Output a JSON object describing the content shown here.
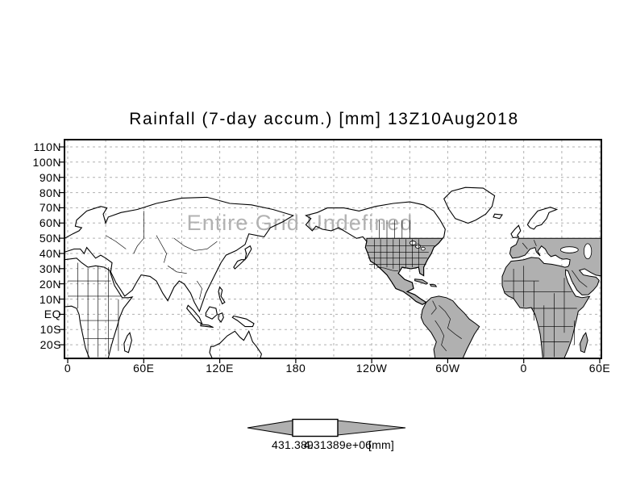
{
  "title": "Rainfall (7-day accum.) [mm] 13Z10Aug2018",
  "watermark": "Entire Grid Undefined",
  "axes": {
    "lat_labels": [
      "110N",
      "100N",
      "90N",
      "80N",
      "70N",
      "60N",
      "50N",
      "40N",
      "30N",
      "20N",
      "10N",
      "EQ",
      "10S",
      "20S"
    ],
    "lon_labels": [
      "0",
      "60E",
      "120E",
      "180",
      "120W",
      "60W",
      "0",
      "60E"
    ]
  },
  "colorbar": {
    "left_label": "431.389",
    "right_label": "4.31389e+06",
    "unit": "[mm]"
  },
  "colors": {
    "land_fill": "#b0b0b0",
    "grid": "#b0b0b0",
    "watermark": "#b2b2b2",
    "line": "#000000",
    "background": "#ffffff"
  },
  "chart_data": {
    "type": "map",
    "projection": "equirectangular-latlon",
    "title": "Rainfall (7-day accum.) [mm] 13Z10Aug2018",
    "variable": "Rainfall (7-day accum.)",
    "units": "mm",
    "valid_time": "13Z10Aug2018",
    "status": "Entire Grid Undefined",
    "data_plotted": false,
    "lat_ticks": [
      "110N",
      "100N",
      "90N",
      "80N",
      "70N",
      "60N",
      "50N",
      "40N",
      "30N",
      "20N",
      "10N",
      "EQ",
      "10S",
      "20S"
    ],
    "lon_ticks": [
      "0",
      "60E",
      "120E",
      "180",
      "120W",
      "60W",
      "0",
      "60E"
    ],
    "lat_grid_interval_deg": 10,
    "lon_grid_interval_deg": 30,
    "lon_range_deg": [
      0,
      420
    ],
    "grid_style": "gray dashed",
    "colorbar": {
      "style": "cbarn",
      "break_labels": [
        "431.389",
        "4.31389e+06"
      ],
      "breaks": [
        431.389,
        4313890
      ],
      "unit": "[mm]",
      "segments": [
        "gray-left-arrow",
        "white-box",
        "gray-right-arrow"
      ]
    }
  }
}
